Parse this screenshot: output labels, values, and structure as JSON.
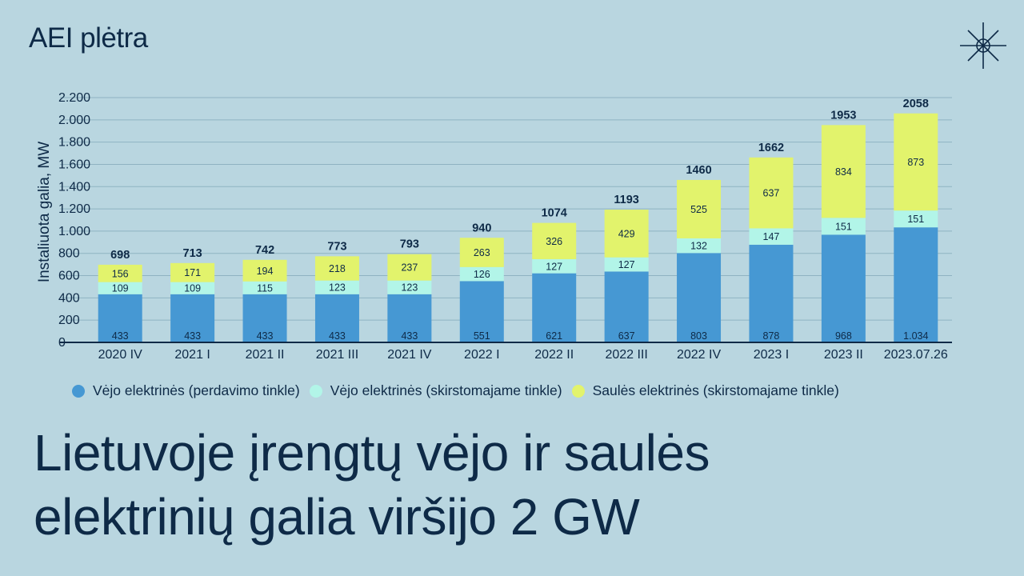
{
  "section_label": "AEI plėtra",
  "headline": {
    "line1": "Lietuvoje įrengtų vėjo ir saulės",
    "line2": "elektrinių galia viršijo 2 GW"
  },
  "colors": {
    "background": "#b9d6e0",
    "wind_transmission": "#4698d3",
    "wind_distribution": "#b2f5e8",
    "solar_distribution": "#e2f36c",
    "text": "#0e2a47"
  },
  "chart_data": {
    "type": "bar",
    "stacked": true,
    "ylabel": "Instaliuota galia, MW",
    "xlabel": "",
    "ylim": [
      0,
      2200
    ],
    "yticks": [
      0,
      200,
      400,
      600,
      800,
      1000,
      1200,
      1400,
      1600,
      1800,
      2000,
      2200
    ],
    "ytick_labels": [
      "0",
      "200",
      "400",
      "600",
      "800",
      "1.000",
      "1.200",
      "1.400",
      "1.600",
      "1.800",
      "2.000",
      "2.200"
    ],
    "grid": true,
    "legend_position": "bottom",
    "categories": [
      "2020 IV",
      "2021 I",
      "2021 II",
      "2021 III",
      "2021 IV",
      "2022 I",
      "2022 II",
      "2022 III",
      "2022 IV",
      "2023 I",
      "2023 II",
      "2023.07.26"
    ],
    "series": [
      {
        "name": "Vėjo elektrinės (perdavimo tinkle)",
        "color": "#4698d3",
        "values": [
          433,
          433,
          433,
          433,
          433,
          551,
          621,
          637,
          803,
          878,
          968,
          1034
        ],
        "labels": [
          "433",
          "433",
          "433",
          "433",
          "433",
          "551",
          "621",
          "637",
          "803",
          "878",
          "968",
          "1.034"
        ]
      },
      {
        "name": "Vėjo elektrinės (skirstomajame tinkle)",
        "color": "#b2f5e8",
        "values": [
          109,
          109,
          115,
          123,
          123,
          126,
          127,
          127,
          132,
          147,
          151,
          151
        ],
        "labels": [
          "109",
          "109",
          "115",
          "123",
          "123",
          "126",
          "127",
          "127",
          "132",
          "147",
          "151",
          "151"
        ]
      },
      {
        "name": "Saulės elektrinės (skirstomajame tinkle)",
        "color": "#e2f36c",
        "values": [
          156,
          171,
          194,
          218,
          237,
          263,
          326,
          429,
          525,
          637,
          834,
          873
        ],
        "labels": [
          "156",
          "171",
          "194",
          "218",
          "237",
          "263",
          "326",
          "429",
          "525",
          "637",
          "834",
          "873"
        ]
      }
    ],
    "totals": [
      698,
      713,
      742,
      773,
      793,
      940,
      1074,
      1193,
      1460,
      1662,
      1953,
      2058
    ],
    "total_labels": [
      "698",
      "713",
      "742",
      "773",
      "793",
      "940",
      "1074",
      "1193",
      "1460",
      "1662",
      "1953",
      "2058"
    ]
  }
}
